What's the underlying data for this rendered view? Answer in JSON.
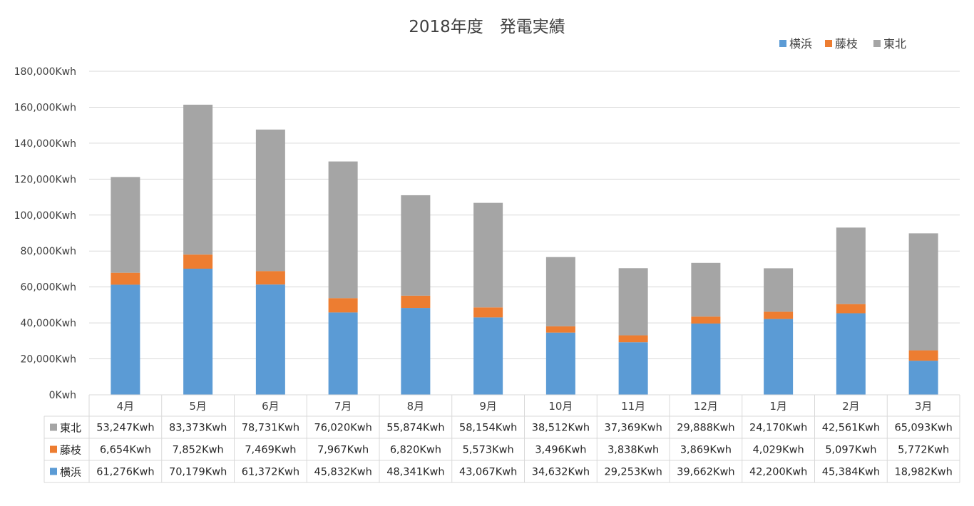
{
  "chart_data": {
    "type": "bar",
    "stacked": true,
    "title": "2018年度　発電実績",
    "unit_suffix": "Kwh",
    "categories": [
      "4月",
      "5月",
      "6月",
      "7月",
      "8月",
      "9月",
      "10月",
      "11月",
      "12月",
      "1月",
      "2月",
      "3月"
    ],
    "series": [
      {
        "name": "横浜",
        "color": "#5B9BD5",
        "values": [
          61276,
          70179,
          61372,
          45832,
          48341,
          43067,
          34632,
          29253,
          39662,
          42200,
          45384,
          18982
        ]
      },
      {
        "name": "藤枝",
        "color": "#ED7D31",
        "values": [
          6654,
          7852,
          7469,
          7967,
          6820,
          5573,
          3496,
          3838,
          3869,
          4029,
          5097,
          5772
        ]
      },
      {
        "name": "東北",
        "color": "#A5A5A5",
        "values": [
          53247,
          83373,
          78731,
          76020,
          55874,
          58154,
          38512,
          37369,
          29888,
          24170,
          42561,
          65093
        ]
      }
    ],
    "table_rows": [
      {
        "series": "東北",
        "cells": [
          "53,247Kwh",
          "83,373Kwh",
          "78,731Kwh",
          "76,020Kwh",
          "55,874Kwh",
          "58,154Kwh",
          "38,512Kwh",
          "37,369Kwh",
          "29,888Kwh",
          "24,170Kwh",
          "42,561Kwh",
          "65,093Kwh"
        ]
      },
      {
        "series": "藤枝",
        "cells": [
          "6,654Kwh",
          "7,852Kwh",
          "7,469Kwh",
          "7,967Kwh",
          "6,820Kwh",
          "5,573Kwh",
          "3,496Kwh",
          "3,838Kwh",
          "3,869Kwh",
          "4,029Kwh",
          "5,097Kwh",
          "5,772Kwh"
        ]
      },
      {
        "series": "横浜",
        "cells": [
          "61,276Kwh",
          "70,179Kwh",
          "61,372Kwh",
          "45,832Kwh",
          "48,341Kwh",
          "43,067Kwh",
          "34,632Kwh",
          "29,253Kwh",
          "39,662Kwh",
          "42,200Kwh",
          "45,384Kwh",
          "18,982Kwh"
        ]
      }
    ],
    "y_ticks": [
      "0Kwh",
      "20,000Kwh",
      "40,000Kwh",
      "60,000Kwh",
      "80,000Kwh",
      "100,000Kwh",
      "120,000Kwh",
      "140,000Kwh",
      "160,000Kwh",
      "180,000Kwh"
    ],
    "ylim": [
      0,
      180000
    ],
    "legend_position": "top-right",
    "legend": [
      "横浜",
      "藤枝",
      "東北"
    ],
    "grid": true,
    "gridline_color": "#D9D9D9"
  }
}
